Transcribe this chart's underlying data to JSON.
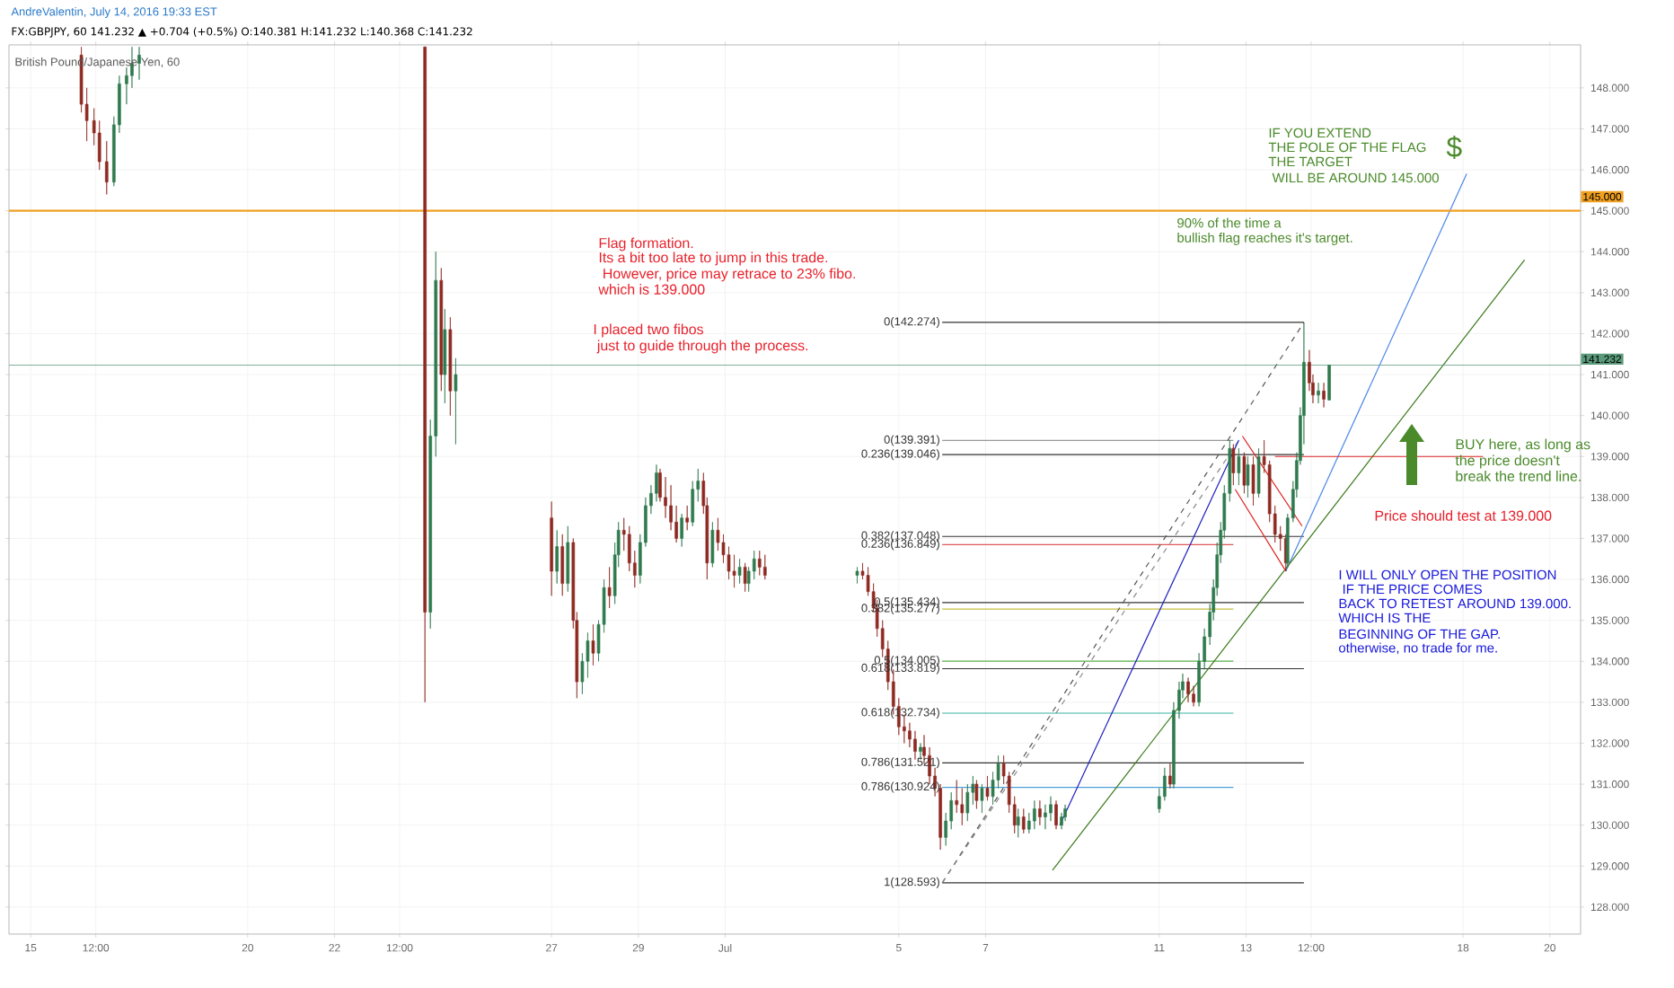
{
  "chart_data": {
    "type": "candlestick",
    "title": "AndreValentin, July 14, 2016 19:33 EST",
    "subtitle": "FX:GBPJPY, 60  141.232 ▲ +0.704 (+0.5%)  O:140.381  H:141.232  L:140.368  C:141.232",
    "x": [
      "2016-06-16T04:00",
      "2016-06-16T07:00",
      "2016-06-16T11:00",
      "2016-06-16T14:00",
      "2016-06-16T18:00",
      "2016-06-16T22:00",
      "2016-06-17T01:00",
      "2016-06-17T05:00",
      "2016-06-17T08:00",
      "2016-06-17T12:00",
      "2016-06-24T02:00",
      "2016-06-24T05:00",
      "2016-06-24T08:00",
      "2016-06-24T11:00",
      "2016-06-24T13:00",
      "2016-06-24T16:00",
      "2016-06-24T19:00",
      "2016-06-27T00:00",
      "2016-06-27T03:00",
      "2016-06-27T06:00",
      "2016-06-27T09:00",
      "2016-06-27T12:00",
      "2016-06-27T14:00",
      "2016-06-27T17:00",
      "2016-06-27T20:00",
      "2016-06-27T23:00",
      "2016-06-28T02:00",
      "2016-06-28T05:00",
      "2016-06-28T08:00",
      "2016-06-28T11:00",
      "2016-06-28T13:00",
      "2016-06-28T16:00",
      "2016-06-28T19:00",
      "2016-06-28T22:00",
      "2016-06-29T01:00",
      "2016-06-29T04:00",
      "2016-06-29T07:00",
      "2016-06-29T10:00",
      "2016-06-29T12:00",
      "2016-06-29T15:00",
      "2016-06-29T18:00",
      "2016-06-29T21:00",
      "2016-06-30T00:00",
      "2016-06-30T03:00",
      "2016-06-30T06:00",
      "2016-06-30T09:00",
      "2016-06-30T12:00",
      "2016-06-30T14:00",
      "2016-06-30T17:00",
      "2016-06-30T20:00",
      "2016-06-30T23:00",
      "2016-07-01T02:00",
      "2016-07-01T05:00",
      "2016-07-01T08:00",
      "2016-07-01T11:00",
      "2016-07-01T13:00",
      "2016-07-01T16:00",
      "2016-07-01T19:00",
      "2016-07-01T22:00",
      "2016-07-04T01:00",
      "2016-07-04T04:00",
      "2016-07-04T07:00",
      "2016-07-04T10:00",
      "2016-07-04T12:00",
      "2016-07-04T15:00",
      "2016-07-04T18:00",
      "2016-07-04T21:00",
      "2016-07-05T00:00",
      "2016-07-05T03:00",
      "2016-07-05T06:00",
      "2016-07-05T09:00",
      "2016-07-05T12:00",
      "2016-07-05T14:00",
      "2016-07-05T17:00",
      "2016-07-05T20:00",
      "2016-07-05T23:00",
      "2016-07-06T02:00",
      "2016-07-06T05:00",
      "2016-07-06T08:00",
      "2016-07-06T11:00",
      "2016-07-06T14:00",
      "2016-07-06T17:00",
      "2016-07-06T19:00",
      "2016-07-06T22:00",
      "2016-07-07T01:00",
      "2016-07-07T04:00",
      "2016-07-07T07:00",
      "2016-07-07T10:00",
      "2016-07-07T13:00",
      "2016-07-07T16:00",
      "2016-07-07T18:00",
      "2016-07-07T21:00",
      "2016-07-08T00:00",
      "2016-07-08T03:00",
      "2016-07-08T06:00",
      "2016-07-08T09:00",
      "2016-07-08T12:00",
      "2016-07-08T15:00",
      "2016-07-08T18:00",
      "2016-07-08T20:00",
      "2016-07-11T00:00",
      "2016-07-11T03:00",
      "2016-07-11T06:00",
      "2016-07-11T08:00",
      "2016-07-11T11:00",
      "2016-07-11T13:00",
      "2016-07-11T16:00",
      "2016-07-11T19:00",
      "2016-07-11T22:00",
      "2016-07-12T01:00",
      "2016-07-12T04:00",
      "2016-07-12T06:00",
      "2016-07-12T08:00",
      "2016-07-12T10:00",
      "2016-07-12T12:00",
      "2016-07-12T15:00",
      "2016-07-12T17:00",
      "2016-07-12T20:00",
      "2016-07-12T23:00",
      "2016-07-13T01:00",
      "2016-07-13T04:00",
      "2016-07-13T07:00",
      "2016-07-13T10:00",
      "2016-07-13T13:00",
      "2016-07-13T16:00",
      "2016-07-13T19:00",
      "2016-07-13T22:00",
      "2016-07-13T23:00",
      "2016-07-14T02:00",
      "2016-07-14T04:00",
      "2016-07-14T06:00",
      "2016-07-14T08:00",
      "2016-07-14T11:00",
      "2016-07-14T13:00",
      "2016-07-14T16:00",
      "2016-07-14T19:00",
      "2016-07-14T22:00"
    ],
    "ohlc": [
      [
        148.8,
        149.0,
        147.4,
        147.6
      ],
      [
        147.6,
        148.0,
        146.7,
        147.2
      ],
      [
        147.2,
        147.5,
        146.6,
        146.9
      ],
      [
        146.9,
        147.2,
        146.0,
        146.2
      ],
      [
        146.2,
        146.7,
        145.4,
        145.7
      ],
      [
        145.7,
        147.3,
        145.6,
        147.1
      ],
      [
        147.1,
        148.3,
        146.9,
        148.1
      ],
      [
        148.1,
        148.5,
        147.6,
        148.3
      ],
      [
        148.3,
        149.0,
        148.0,
        148.6
      ],
      [
        148.6,
        149.0,
        148.2,
        148.8
      ],
      [
        149.0,
        149.0,
        133.0,
        135.2
      ],
      [
        135.2,
        139.9,
        134.8,
        139.5
      ],
      [
        139.5,
        144.0,
        139.0,
        143.3
      ],
      [
        143.3,
        143.6,
        140.6,
        141.0
      ],
      [
        141.0,
        142.6,
        140.3,
        142.1
      ],
      [
        142.1,
        142.4,
        140.0,
        140.6
      ],
      [
        140.6,
        141.4,
        139.3,
        141.0
      ],
      [
        137.5,
        137.9,
        135.6,
        136.2
      ],
      [
        136.2,
        137.2,
        135.9,
        136.8
      ],
      [
        136.8,
        137.1,
        135.6,
        135.9
      ],
      [
        135.9,
        137.3,
        135.7,
        136.9
      ],
      [
        136.9,
        137.0,
        134.8,
        135.0
      ],
      [
        135.0,
        135.2,
        133.1,
        133.5
      ],
      [
        133.5,
        134.2,
        133.2,
        134.0
      ],
      [
        134.0,
        134.7,
        133.6,
        134.5
      ],
      [
        134.5,
        134.9,
        133.9,
        134.2
      ],
      [
        134.2,
        135.0,
        134.0,
        134.9
      ],
      [
        134.9,
        136.0,
        134.7,
        135.8
      ],
      [
        135.8,
        136.3,
        135.3,
        135.6
      ],
      [
        135.6,
        136.9,
        135.4,
        136.6
      ],
      [
        136.6,
        137.4,
        136.3,
        137.2
      ],
      [
        137.2,
        137.5,
        136.7,
        137.1
      ],
      [
        137.1,
        137.3,
        136.2,
        136.4
      ],
      [
        136.4,
        136.7,
        135.8,
        136.1
      ],
      [
        136.1,
        137.1,
        135.9,
        136.9
      ],
      [
        136.9,
        138.0,
        136.8,
        137.8
      ],
      [
        137.8,
        138.3,
        137.6,
        138.1
      ],
      [
        138.1,
        138.8,
        137.9,
        138.6
      ],
      [
        138.6,
        138.7,
        137.9,
        138.0
      ],
      [
        138.0,
        138.5,
        137.5,
        137.8
      ],
      [
        137.8,
        138.3,
        137.2,
        137.4
      ],
      [
        137.4,
        137.8,
        136.9,
        137.0
      ],
      [
        137.0,
        137.6,
        136.8,
        137.5
      ],
      [
        137.5,
        137.8,
        137.2,
        137.4
      ],
      [
        137.4,
        138.4,
        137.3,
        138.2
      ],
      [
        138.2,
        138.7,
        137.9,
        138.4
      ],
      [
        138.4,
        138.6,
        137.6,
        137.8
      ],
      [
        137.8,
        138.0,
        136.0,
        136.4
      ],
      [
        136.4,
        137.4,
        136.3,
        137.2
      ],
      [
        137.2,
        137.5,
        136.7,
        136.9
      ],
      [
        136.9,
        137.1,
        136.4,
        136.6
      ],
      [
        136.6,
        136.8,
        136.0,
        136.2
      ],
      [
        136.2,
        136.6,
        135.8,
        136.1
      ],
      [
        136.1,
        136.5,
        135.9,
        136.3
      ],
      [
        136.3,
        136.4,
        135.7,
        135.9
      ],
      [
        135.9,
        136.3,
        135.7,
        136.2
      ],
      [
        136.2,
        136.7,
        136.0,
        136.5
      ],
      [
        136.5,
        136.7,
        136.1,
        136.3
      ],
      [
        136.3,
        136.6,
        136.0,
        136.1
      ],
      [
        136.1,
        136.3,
        135.9,
        136.2
      ],
      [
        136.2,
        136.4,
        136.0,
        136.1
      ],
      [
        136.1,
        136.3,
        135.6,
        135.7
      ],
      [
        135.7,
        135.9,
        135.2,
        135.3
      ],
      [
        135.3,
        135.5,
        134.6,
        134.8
      ],
      [
        134.8,
        135.0,
        134.1,
        134.3
      ],
      [
        134.3,
        134.5,
        133.3,
        133.5
      ],
      [
        133.5,
        133.8,
        132.7,
        132.9
      ],
      [
        132.9,
        133.1,
        132.2,
        132.4
      ],
      [
        132.4,
        132.7,
        132.0,
        132.3
      ],
      [
        132.3,
        132.5,
        131.9,
        132.1
      ],
      [
        132.1,
        132.3,
        131.6,
        131.8
      ],
      [
        131.8,
        132.0,
        131.6,
        131.9
      ],
      [
        131.9,
        132.2,
        131.5,
        131.7
      ],
      [
        131.7,
        131.9,
        131.0,
        131.2
      ],
      [
        131.2,
        131.4,
        130.7,
        130.9
      ],
      [
        130.9,
        131.0,
        129.4,
        129.7
      ],
      [
        129.7,
        130.3,
        129.5,
        130.1
      ],
      [
        130.1,
        130.8,
        129.9,
        130.6
      ],
      [
        130.6,
        131.1,
        130.3,
        130.5
      ],
      [
        130.5,
        130.9,
        130.0,
        130.3
      ],
      [
        130.3,
        131.0,
        130.1,
        130.8
      ],
      [
        130.8,
        131.2,
        130.5,
        131.0
      ],
      [
        131.0,
        131.1,
        130.4,
        130.6
      ],
      [
        130.6,
        131.0,
        130.3,
        130.9
      ],
      [
        130.9,
        131.2,
        130.6,
        130.7
      ],
      [
        130.7,
        131.3,
        130.5,
        131.1
      ],
      [
        131.1,
        131.7,
        130.9,
        131.5
      ],
      [
        131.5,
        131.7,
        131.0,
        131.2
      ],
      [
        131.2,
        131.3,
        130.3,
        130.5
      ],
      [
        130.5,
        130.7,
        129.8,
        130.0
      ],
      [
        130.0,
        130.4,
        129.7,
        130.2
      ],
      [
        130.2,
        130.4,
        129.8,
        129.9
      ],
      [
        129.9,
        130.3,
        129.8,
        130.1
      ],
      [
        130.1,
        130.6,
        129.9,
        130.4
      ],
      [
        130.4,
        130.6,
        130.0,
        130.2
      ],
      [
        130.2,
        130.5,
        129.9,
        130.3
      ],
      [
        130.3,
        130.7,
        130.1,
        130.5
      ],
      [
        130.5,
        130.6,
        129.9,
        130.0
      ],
      [
        130.0,
        130.3,
        129.9,
        130.2
      ],
      [
        130.2,
        130.5,
        130.1,
        130.4
      ],
      [
        130.4,
        130.9,
        130.3,
        130.7
      ],
      [
        130.7,
        131.4,
        130.6,
        131.2
      ],
      [
        131.2,
        131.5,
        130.9,
        131.0
      ],
      [
        131.0,
        133.0,
        130.9,
        132.8
      ],
      [
        132.8,
        133.5,
        132.6,
        133.3
      ],
      [
        133.3,
        133.7,
        133.1,
        133.5
      ],
      [
        133.5,
        133.6,
        133.0,
        133.2
      ],
      [
        133.2,
        133.4,
        132.9,
        133.0
      ],
      [
        133.0,
        134.2,
        132.9,
        134.0
      ],
      [
        134.0,
        134.8,
        133.8,
        134.6
      ],
      [
        134.6,
        135.4,
        134.4,
        135.2
      ],
      [
        135.2,
        136.0,
        135.0,
        135.8
      ],
      [
        135.8,
        136.9,
        135.6,
        136.6
      ],
      [
        136.6,
        137.4,
        136.4,
        137.2
      ],
      [
        137.2,
        138.3,
        137.0,
        138.1
      ],
      [
        138.1,
        139.4,
        137.9,
        139.2
      ],
      [
        139.2,
        139.3,
        138.3,
        138.6
      ],
      [
        138.6,
        139.2,
        138.3,
        139.0
      ],
      [
        139.0,
        139.1,
        138.1,
        138.3
      ],
      [
        138.3,
        139.0,
        138.0,
        138.8
      ],
      [
        138.8,
        139.0,
        137.8,
        138.1
      ],
      [
        138.1,
        139.2,
        138.0,
        139.0
      ],
      [
        139.0,
        139.4,
        138.6,
        138.8
      ],
      [
        138.8,
        138.9,
        137.4,
        137.6
      ],
      [
        137.6,
        137.8,
        136.9,
        137.1
      ],
      [
        137.1,
        137.3,
        136.7,
        137.0
      ],
      [
        137.0,
        137.1,
        136.2,
        136.4
      ],
      [
        136.4,
        137.6,
        136.3,
        137.5
      ],
      [
        137.5,
        138.4,
        137.4,
        138.2
      ],
      [
        138.2,
        139.1,
        138.0,
        138.9
      ],
      [
        138.9,
        140.2,
        138.8,
        140.0
      ],
      [
        140.0,
        142.274,
        139.3,
        141.3
      ],
      [
        141.3,
        141.6,
        140.6,
        140.8
      ],
      [
        140.8,
        141.0,
        140.3,
        140.5
      ],
      [
        140.5,
        140.8,
        140.3,
        140.6
      ],
      [
        140.6,
        140.8,
        140.2,
        140.4
      ],
      [
        140.381,
        141.232,
        140.368,
        141.232
      ]
    ],
    "series": [
      {
        "type": "line",
        "color": "#333333",
        "x": [
          "2016-07-06T00:00",
          "2016-07-14T08:00"
        ],
        "values": [
          142.274,
          142.274
        ]
      },
      {
        "type": "line",
        "color": "#333333",
        "x": [
          "2016-07-06T00:00",
          "2016-07-14T08:00"
        ],
        "values": [
          139.046,
          139.046
        ]
      },
      {
        "type": "line",
        "color": "#333333",
        "x": [
          "2016-07-06T00:00",
          "2016-07-14T08:00"
        ],
        "values": [
          137.048,
          137.048
        ]
      },
      {
        "type": "line",
        "color": "#333333",
        "x": [
          "2016-07-06T00:00",
          "2016-07-14T08:00"
        ],
        "values": [
          135.434,
          135.434
        ]
      },
      {
        "type": "line",
        "color": "#333333",
        "x": [
          "2016-07-06T00:00",
          "2016-07-14T08:00"
        ],
        "values": [
          133.819,
          133.819
        ]
      },
      {
        "type": "line",
        "color": "#333333",
        "x": [
          "2016-07-06T00:00",
          "2016-07-14T08:00"
        ],
        "values": [
          131.521,
          131.521
        ]
      },
      {
        "type": "line",
        "color": "#333333",
        "x": [
          "2016-07-06T00:00",
          "2016-07-14T08:00"
        ],
        "values": [
          128.593,
          128.593
        ]
      },
      {
        "type": "line",
        "color": "#999999",
        "x": [
          "2016-07-06T00:00",
          "2016-07-12T17:00"
        ],
        "values": [
          139.391,
          139.391
        ]
      },
      {
        "type": "line",
        "color": "#e05a5a",
        "x": [
          "2016-07-06T00:00",
          "2016-07-12T17:00"
        ],
        "values": [
          136.849,
          136.849
        ]
      },
      {
        "type": "line",
        "color": "#c8c040",
        "x": [
          "2016-07-06T00:00",
          "2016-07-12T17:00"
        ],
        "values": [
          135.277,
          135.277
        ]
      },
      {
        "type": "line",
        "color": "#5cb04c",
        "x": [
          "2016-07-06T00:00",
          "2016-07-12T17:00"
        ],
        "values": [
          134.005,
          134.005
        ]
      },
      {
        "type": "line",
        "color": "#3cb4a0",
        "x": [
          "2016-07-06T00:00",
          "2016-07-12T17:00"
        ],
        "values": [
          132.734,
          132.734
        ]
      },
      {
        "type": "line",
        "color": "#4aa0d8",
        "x": [
          "2016-07-06T00:00",
          "2016-07-12T17:00"
        ],
        "values": [
          130.924,
          130.924
        ]
      },
      {
        "type": "line",
        "color": "#555555",
        "line_style": "dashed",
        "x": [
          "2016-07-06T00:00",
          "2016-07-14T08:00"
        ],
        "values": [
          128.593,
          142.274
        ]
      },
      {
        "type": "line",
        "color": "#888888",
        "line_style": "dashed",
        "x": [
          "2016-07-06T00:00",
          "2016-07-12T20:00"
        ],
        "values": [
          128.593,
          139.391
        ]
      },
      {
        "type": "line",
        "color": "#2020c0",
        "x": [
          "2016-07-08T17:00",
          "2016-07-12T20:00"
        ],
        "values": [
          130.0,
          139.4
        ]
      },
      {
        "type": "line",
        "color": "#4a86e8",
        "x": [
          "2016-07-13T22:00",
          "2016-07-18T02:00"
        ],
        "values": [
          136.2,
          145.9
        ]
      },
      {
        "type": "line",
        "color": "#3a7a1a",
        "x": [
          "2016-07-08T13:00",
          "2016-07-19T10:00"
        ],
        "values": [
          128.9,
          143.8
        ]
      },
      {
        "type": "line",
        "color": "#e02020",
        "x": [
          "2016-07-12T22:00",
          "2016-07-14T07:00"
        ],
        "values": [
          139.5,
          137.3
        ]
      },
      {
        "type": "line",
        "color": "#e02020",
        "x": [
          "2016-07-12T18:00",
          "2016-07-13T22:00"
        ],
        "values": [
          138.2,
          136.2
        ]
      },
      {
        "type": "line",
        "color": "#e02020",
        "x": [
          "2016-07-13T16:00",
          "2016-07-18T11:00"
        ],
        "values": [
          139.0,
          139.0
        ]
      }
    ],
    "ref_lines": [
      {
        "axis": "y",
        "value": 145.0,
        "label": "145.000",
        "color": "#f0a020"
      },
      {
        "axis": "y",
        "value": 141.232,
        "label": "141.232",
        "color": "#5a9a7a"
      }
    ],
    "annotations": [
      "British Pound/Japanese Yen, 60",
      "Flag formation.",
      "Its a bit too late to jump in this trade.",
      " However, price may retrace to 23%  fibo.",
      "which is 139.000",
      "I placed two fibos",
      " just to guide through the process.",
      "Price should test at 139.000",
      "IF YOU EXTEND",
      "THE POLE OF THE FLAG",
      "THE TARGET",
      " WILL BE AROUND 145.000",
      "$",
      "90% of the time a",
      "bullish flag reaches it's target.",
      "BUY here, as long as",
      "the price doesn't",
      "break the trend line.",
      "I WILL ONLY OPEN THE POSITION",
      " IF THE PRICE COMES",
      "BACK TO RETEST AROUND 139.000.",
      "WHICH IS THE",
      "BEGINNING OF THE GAP.",
      "otherwise, no trade for me.",
      {
        "text": "0(142.274)",
        "x": "2016-07-06T00:00",
        "y": 142.274
      },
      {
        "text": "0.236(139.046)",
        "x": "2016-07-06T00:00",
        "y": 139.046
      },
      {
        "text": "0.382(137.048)",
        "x": "2016-07-06T00:00",
        "y": 137.048
      },
      {
        "text": "0.5(135.434)",
        "x": "2016-07-06T00:00",
        "y": 135.434
      },
      {
        "text": "0.618(133.819)",
        "x": "2016-07-06T00:00",
        "y": 133.819
      },
      {
        "text": "0.786(131.521)",
        "x": "2016-07-06T00:00",
        "y": 131.521
      },
      {
        "text": "1(128.593)",
        "x": "2016-07-06T00:00",
        "y": 128.593
      },
      {
        "text": "0(139.391)",
        "x": "2016-07-06T00:00",
        "y": 139.391
      },
      {
        "text": "0.236(136.849)",
        "x": "2016-07-06T00:00",
        "y": 136.849
      },
      {
        "text": "0.382(135.277)",
        "x": "2016-07-06T00:00",
        "y": 135.277
      },
      {
        "text": "0.5(134.005)",
        "x": "2016-07-06T00:00",
        "y": 134.005
      },
      {
        "text": "0.618(132.734)",
        "x": "2016-07-06T00:00",
        "y": 132.734
      },
      {
        "text": "0.786(130.924)",
        "x": "2016-07-06T00:00",
        "y": 130.924
      }
    ],
    "xlim": [
      "2016-06-14T12:00",
      "2016-07-20T17:00"
    ],
    "ylim": [
      127.34,
      149.05
    ],
    "xticks": [
      {
        "value": "2016-06-15",
        "label": "15"
      },
      {
        "value": "2016-06-16T12:00",
        "label": "12:00"
      },
      {
        "value": "2016-06-20",
        "label": "20"
      },
      {
        "value": "2016-06-22",
        "label": "22"
      },
      {
        "value": "2016-06-23T12:00",
        "label": "12:00"
      },
      {
        "value": "2016-06-27",
        "label": "27"
      },
      {
        "value": "2016-06-29",
        "label": "29"
      },
      {
        "value": "2016-07-01",
        "label": "Jul"
      },
      {
        "value": "2016-07-05",
        "label": "5"
      },
      {
        "value": "2016-07-07",
        "label": "7"
      },
      {
        "value": "2016-07-11",
        "label": "11"
      },
      {
        "value": "2016-07-13",
        "label": "13"
      },
      {
        "value": "2016-07-14T12:00",
        "label": "12:00"
      },
      {
        "value": "2016-07-18",
        "label": "18"
      },
      {
        "value": "2016-07-20",
        "label": "20"
      }
    ],
    "yticks": [
      {
        "value": 128,
        "label": "128.000"
      },
      {
        "value": 129,
        "label": "129.000"
      },
      {
        "value": 130,
        "label": "130.000"
      },
      {
        "value": 131,
        "label": "131.000"
      },
      {
        "value": 132,
        "label": "132.000"
      },
      {
        "value": 133,
        "label": "133.000"
      },
      {
        "value": 134,
        "label": "134.000"
      },
      {
        "value": 135,
        "label": "135.000"
      },
      {
        "value": 136,
        "label": "136.000"
      },
      {
        "value": 137,
        "label": "137.000"
      },
      {
        "value": 138,
        "label": "138.000"
      },
      {
        "value": 139,
        "label": "139.000"
      },
      {
        "value": 140,
        "label": "140.000"
      },
      {
        "value": 141,
        "label": "141.000"
      },
      {
        "value": 142,
        "label": "142.000"
      },
      {
        "value": 143,
        "label": "143.000"
      },
      {
        "value": 144,
        "label": "144.000"
      },
      {
        "value": 145,
        "label": "145.000"
      },
      {
        "value": 146,
        "label": "146.000"
      },
      {
        "value": 147,
        "label": "147.000"
      },
      {
        "value": 148,
        "label": "148.000"
      }
    ],
    "grid": true
  }
}
